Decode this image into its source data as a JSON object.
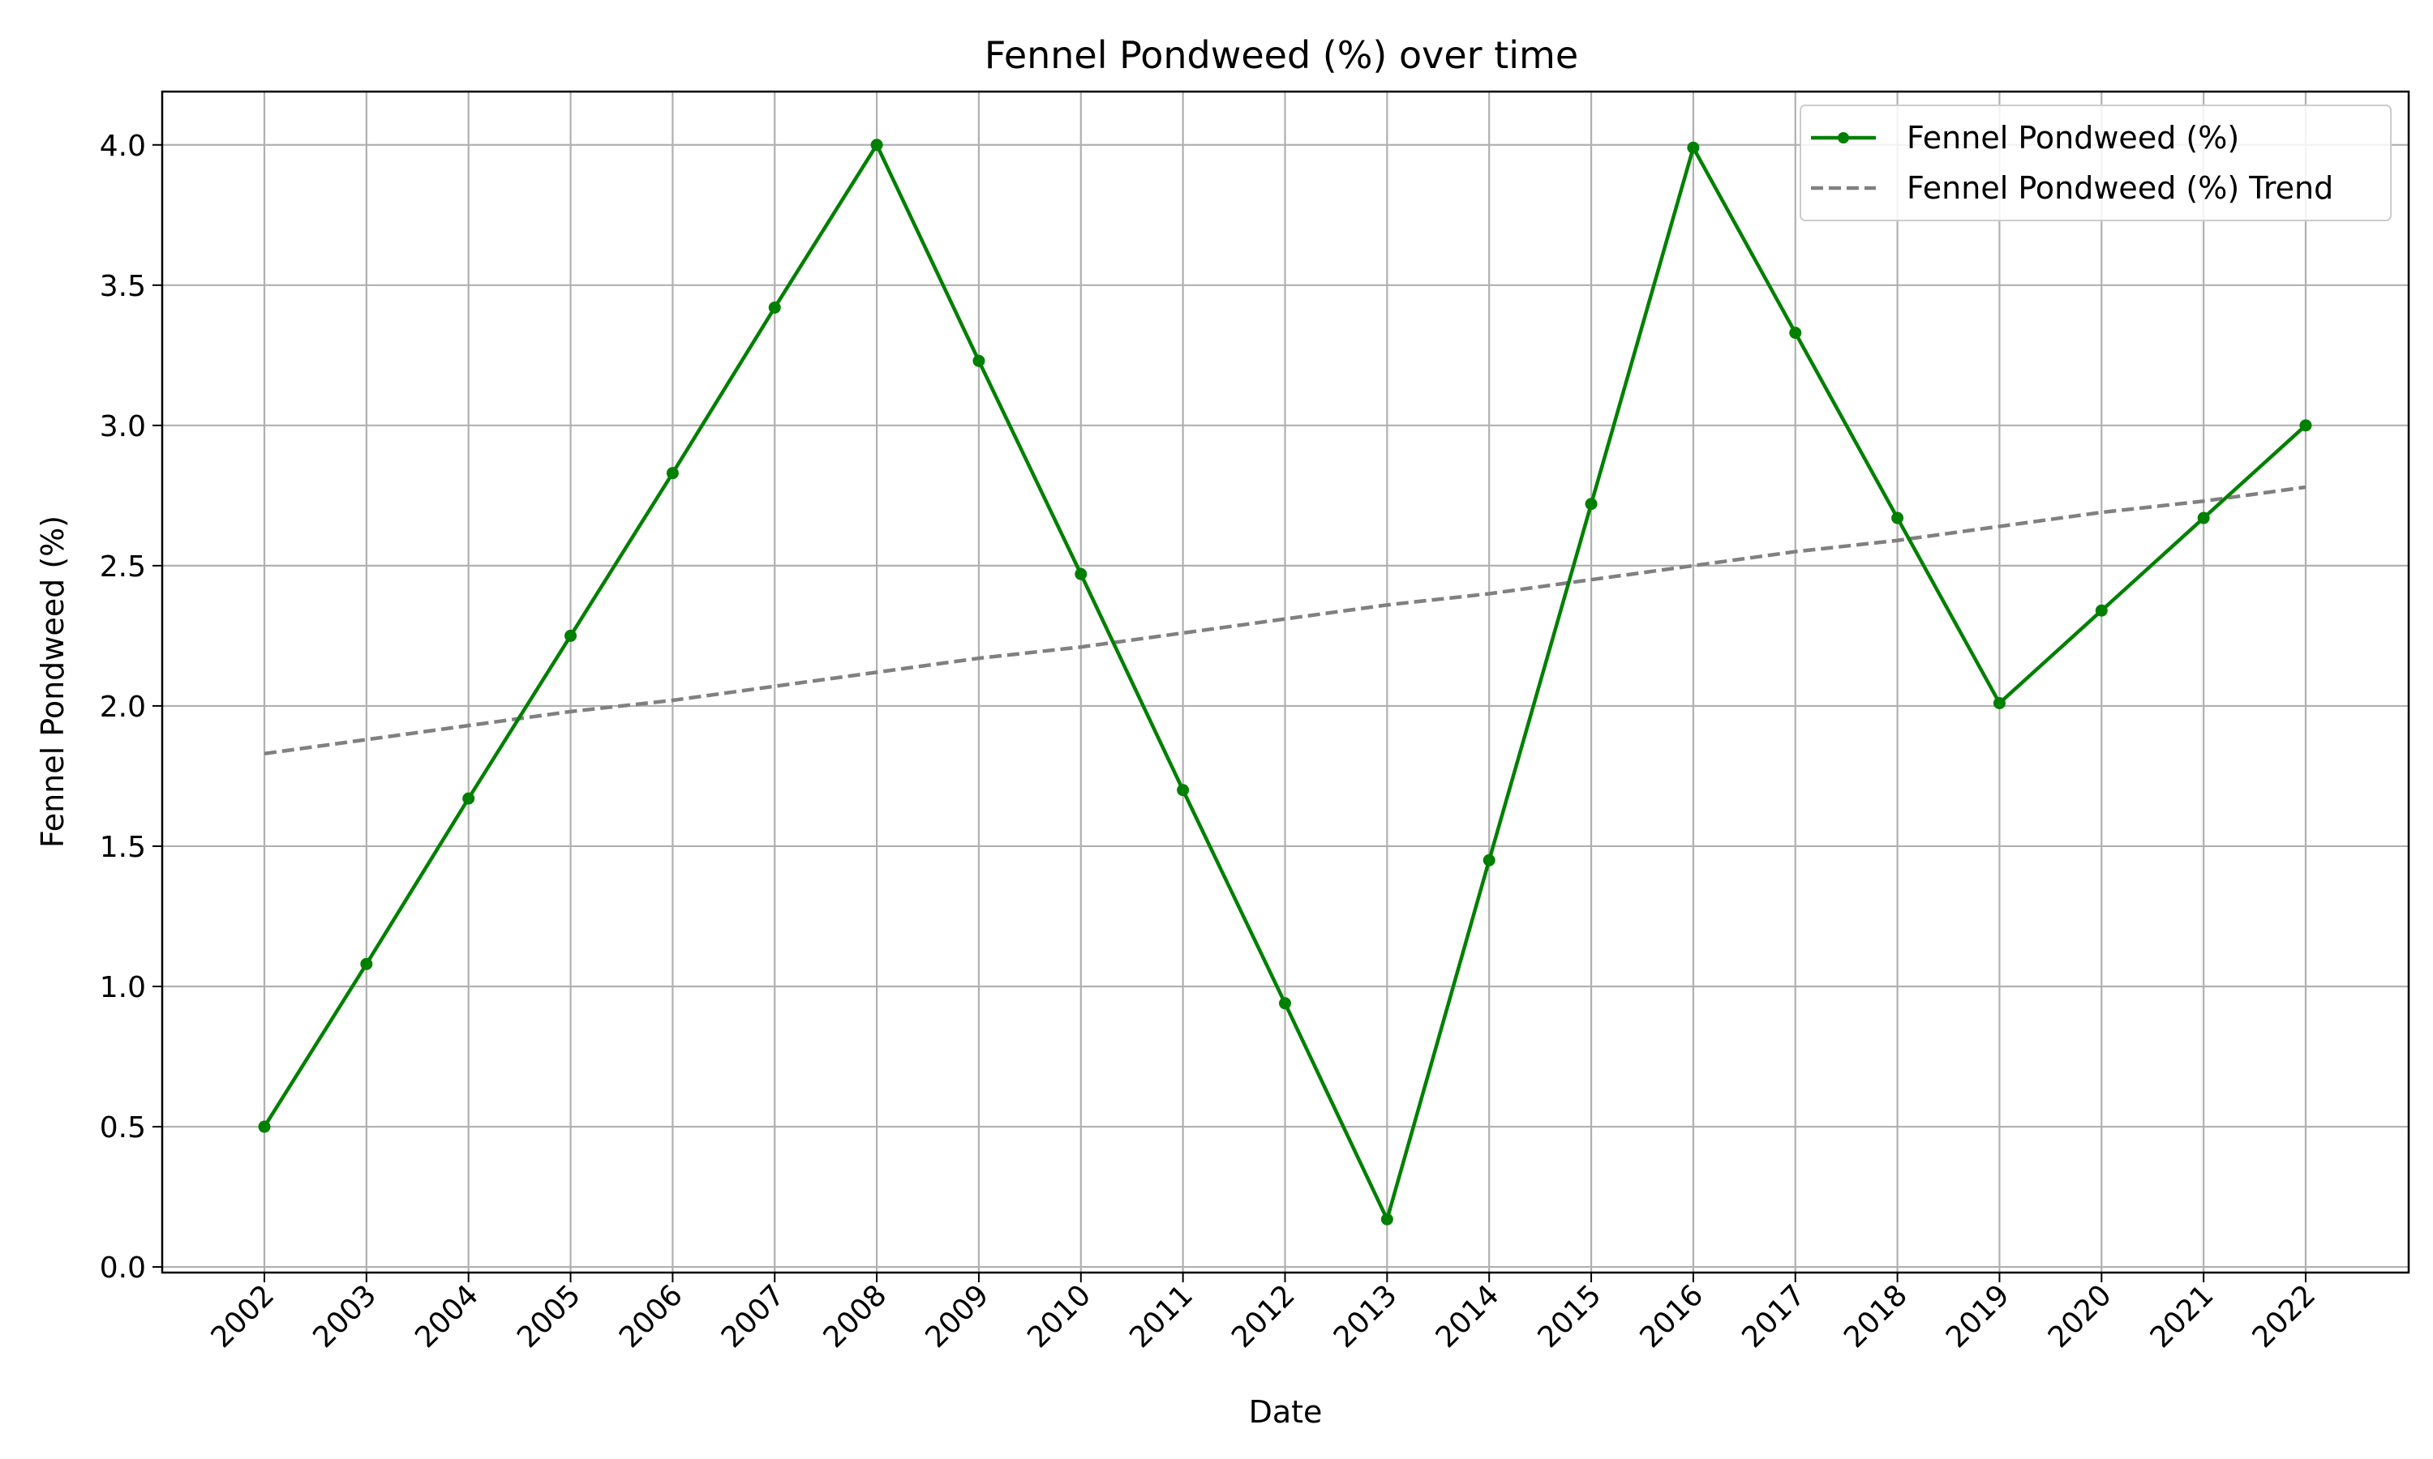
{
  "chart_data": {
    "type": "line",
    "title": "Fennel Pondweed (%) over time",
    "xlabel": "Date",
    "ylabel": "Fennel Pondweed (%)",
    "x": [
      "2002",
      "2003",
      "2004",
      "2005",
      "2006",
      "2007",
      "2008",
      "2009",
      "2010",
      "2011",
      "2012",
      "2013",
      "2014",
      "2015",
      "2016",
      "2017",
      "2018",
      "2019",
      "2020",
      "2021",
      "2022"
    ],
    "ylim": [
      -0.02,
      4.19
    ],
    "yticks": [
      "0.0",
      "0.5",
      "1.0",
      "1.5",
      "2.0",
      "2.5",
      "3.0",
      "3.5",
      "4.0"
    ],
    "grid": true,
    "legend_position": "top-right",
    "series": [
      {
        "name": "Fennel Pondweed (%)",
        "style": "solid-with-markers",
        "color": "#008000",
        "values": [
          0.5,
          1.08,
          1.67,
          2.25,
          2.83,
          3.42,
          4.0,
          3.23,
          2.47,
          1.7,
          0.94,
          0.17,
          1.45,
          2.72,
          3.99,
          3.33,
          2.67,
          2.01,
          2.34,
          2.67,
          3.0
        ]
      },
      {
        "name": "Fennel Pondweed (%) Trend",
        "style": "dashed",
        "color": "#808080",
        "values": [
          1.83,
          1.88,
          1.93,
          1.98,
          2.02,
          2.07,
          2.12,
          2.17,
          2.21,
          2.26,
          2.31,
          2.36,
          2.4,
          2.45,
          2.5,
          2.55,
          2.59,
          2.64,
          2.69,
          2.73,
          2.78
        ]
      }
    ]
  }
}
